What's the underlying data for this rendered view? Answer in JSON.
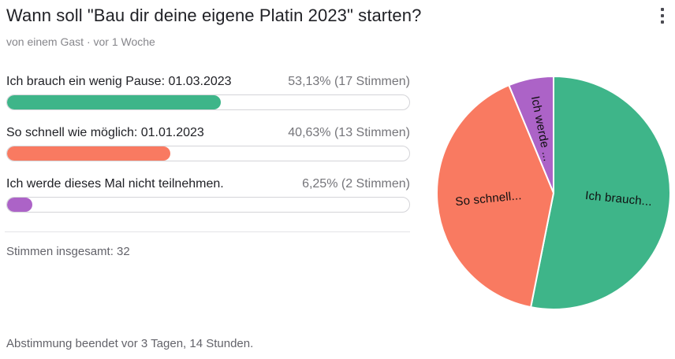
{
  "header": {
    "title": "Wann soll \"Bau dir deine eigene Platin 2023\" starten?",
    "byline": "von einem Gast · vor 1 Woche",
    "menu_icon": "kebab-menu-icon"
  },
  "poll": {
    "options": [
      {
        "label": "Ich brauch ein wenig Pause: 01.03.2023",
        "result": "53,13% (17 Stimmen)",
        "percent": 53.13,
        "votes": 17,
        "color": "#3eb589"
      },
      {
        "label": "So schnell wie möglich: 01.01.2023",
        "result": "40,63% (13 Stimmen)",
        "percent": 40.63,
        "votes": 13,
        "color": "#f97a61"
      },
      {
        "label": "Ich werde dieses Mal nicht teilnehmen.",
        "result": "6,25% (2 Stimmen)",
        "percent": 6.25,
        "votes": 2,
        "color": "#ac63c7"
      }
    ],
    "total_label": "Stimmen insgesamt: 32",
    "total_votes": 32,
    "status": "Abstimmung beendet vor 3 Tagen, 14 Stunden."
  },
  "chart_data": {
    "type": "pie",
    "labels": [
      "Ich brauch...",
      "So schnell...",
      "Ich werde ..."
    ],
    "values": [
      53.13,
      40.63,
      6.25
    ],
    "colors": [
      "#3eb589",
      "#f97a61",
      "#ac63c7"
    ],
    "start_angle_deg": 0,
    "direction": "clockwise",
    "slice_border_color": "#ffffff",
    "legend": "none",
    "label_color": "#0f0f10"
  }
}
